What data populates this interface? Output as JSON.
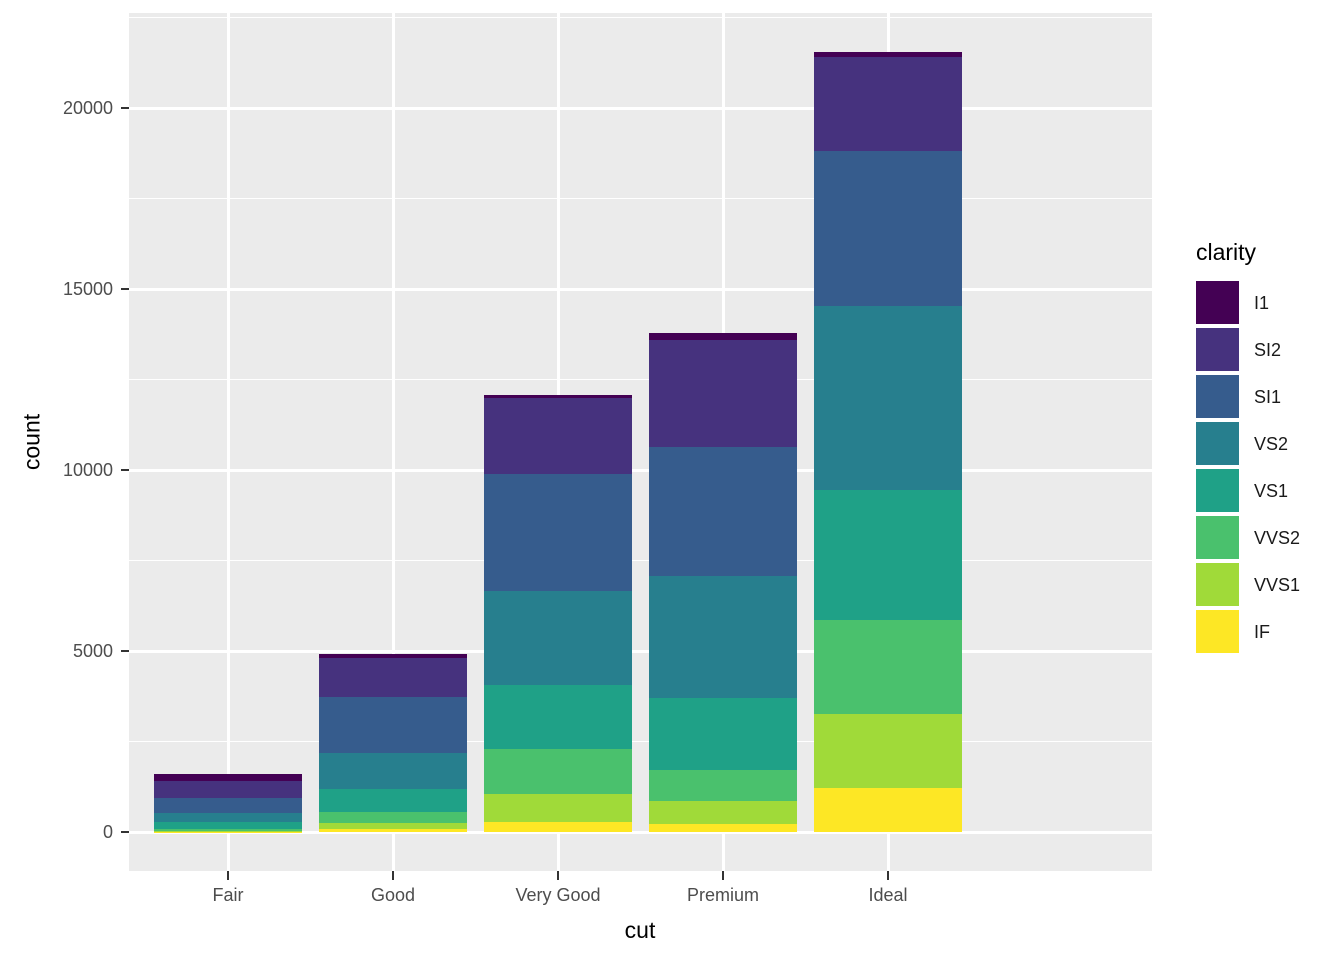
{
  "figure": {
    "background": "#FFFFFF",
    "panel_background": "#EBEBEB",
    "gridline_color": "#FFFFFF",
    "axis_text_color": "#4D4D4D",
    "axis_title_color": "#000000",
    "tick_mark_color": "#333333"
  },
  "chart_data": {
    "type": "bar",
    "stacked": true,
    "title": "",
    "xlabel": "cut",
    "ylabel": "count",
    "categories": [
      "Fair",
      "Good",
      "Very Good",
      "Premium",
      "Ideal"
    ],
    "series": [
      {
        "name": "I1",
        "color": "#440154",
        "values": [
          210,
          96,
          84,
          205,
          146
        ]
      },
      {
        "name": "SI2",
        "color": "#46327E",
        "values": [
          466,
          1081,
          2100,
          2949,
          2598
        ]
      },
      {
        "name": "SI1",
        "color": "#365C8D",
        "values": [
          408,
          1560,
          3240,
          3575,
          4282
        ]
      },
      {
        "name": "VS2",
        "color": "#277F8E",
        "values": [
          261,
          978,
          2591,
          3357,
          5071
        ]
      },
      {
        "name": "VS1",
        "color": "#1FA187",
        "values": [
          170,
          648,
          1775,
          1989,
          3589
        ]
      },
      {
        "name": "VVS2",
        "color": "#4AC16D",
        "values": [
          69,
          286,
          1235,
          870,
          2606
        ]
      },
      {
        "name": "VVS1",
        "color": "#A0DA39",
        "values": [
          17,
          186,
          789,
          616,
          2047
        ]
      },
      {
        "name": "IF",
        "color": "#FDE725",
        "values": [
          9,
          71,
          268,
          230,
          1212
        ]
      }
    ],
    "stack_order_bottom_to_top": [
      "IF",
      "VVS1",
      "VVS2",
      "VS1",
      "VS2",
      "SI1",
      "SI2",
      "I1"
    ],
    "totals": [
      1610,
      4906,
      12082,
      13791,
      21551
    ],
    "yticks": [
      0,
      5000,
      10000,
      15000,
      20000
    ],
    "ytick_labels": [
      "0",
      "5000",
      "10000",
      "15000",
      "20000"
    ],
    "yminor_step": 2500,
    "ylim": [
      0,
      21551
    ],
    "y_expansion_mult": 0.05,
    "grid": true,
    "legend": {
      "title": "clarity",
      "position": "right",
      "items": [
        "I1",
        "SI2",
        "SI1",
        "VS2",
        "VS1",
        "VVS2",
        "VVS1",
        "IF"
      ]
    }
  }
}
